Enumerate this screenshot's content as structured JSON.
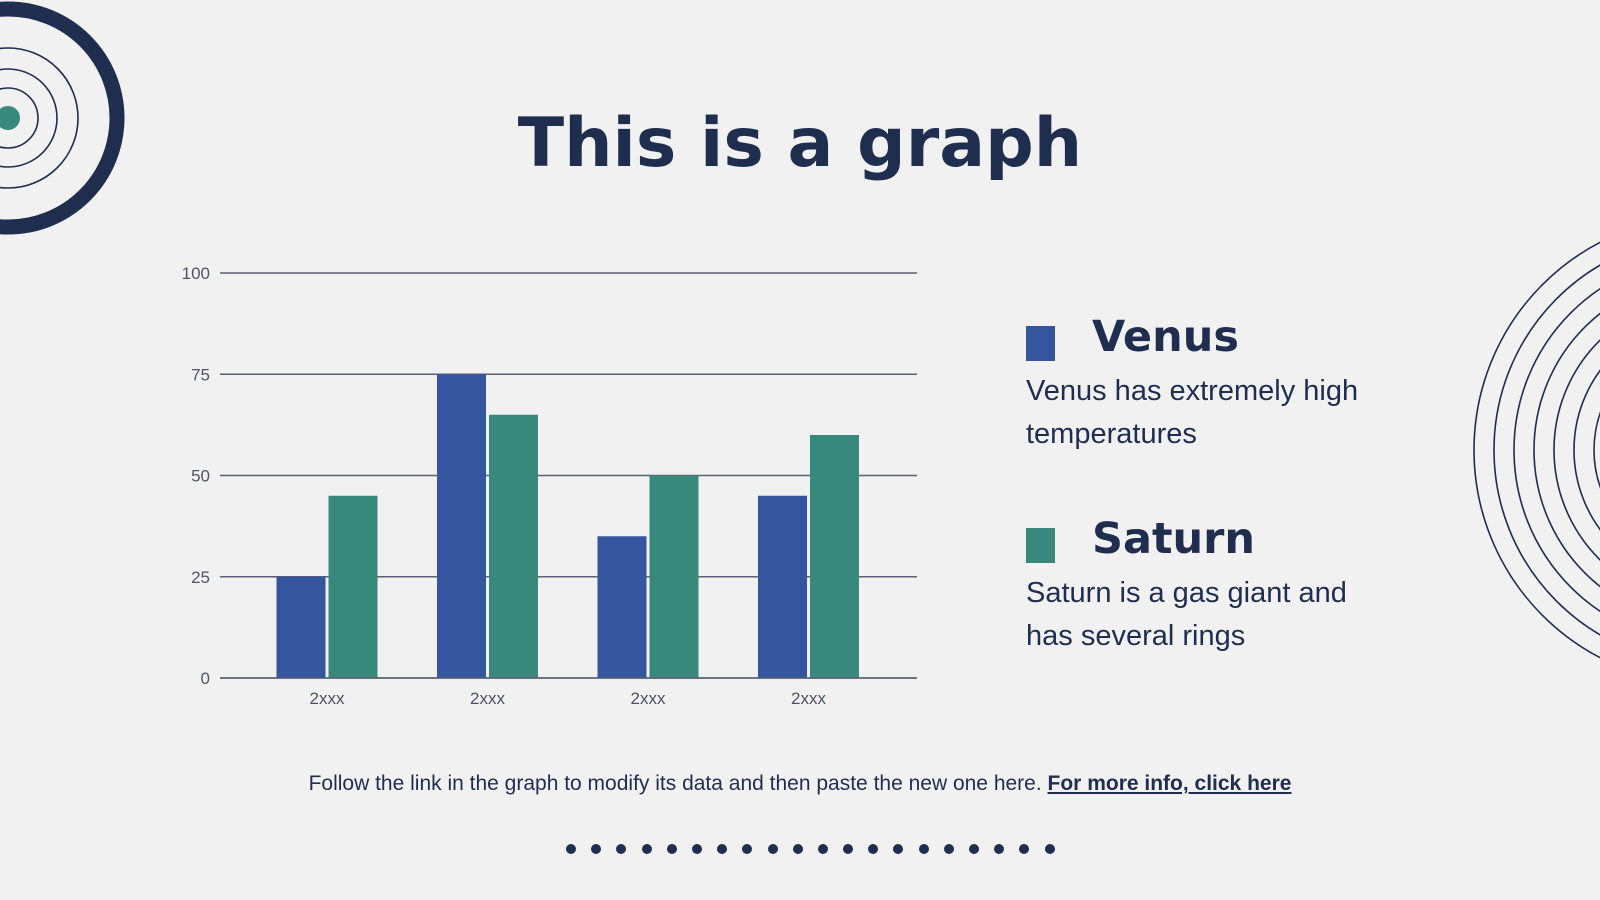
{
  "slide": {
    "title": "This is a graph",
    "footnote_text": "Follow the link in the graph to modify its data and then paste the new one here.",
    "footnote_link": "For more info, click here",
    "dot_count": 20
  },
  "legend": [
    {
      "name": "Venus",
      "color": "#35559f",
      "desc": "Venus has extremely high temperatures"
    },
    {
      "name": "Saturn",
      "color": "#38897c",
      "desc": "Saturn is a gas giant and has several rings"
    }
  ],
  "colors": {
    "text": "#1f2d4f",
    "background": "#f1f1f1",
    "venus": "#35559f",
    "saturn": "#38897c",
    "ring_accent": "#38897c"
  },
  "chart_data": {
    "type": "bar",
    "categories": [
      "2xxx",
      "2xxx",
      "2xxx",
      "2xxx"
    ],
    "series": [
      {
        "name": "Venus",
        "color": "#35559f",
        "values": [
          25,
          75,
          35,
          45
        ]
      },
      {
        "name": "Saturn",
        "color": "#38897c",
        "values": [
          45,
          65,
          50,
          60
        ]
      }
    ],
    "ylim": [
      0,
      100
    ],
    "yticks": [
      0,
      25,
      50,
      75,
      100
    ],
    "grid": true,
    "legend_position": "right"
  }
}
